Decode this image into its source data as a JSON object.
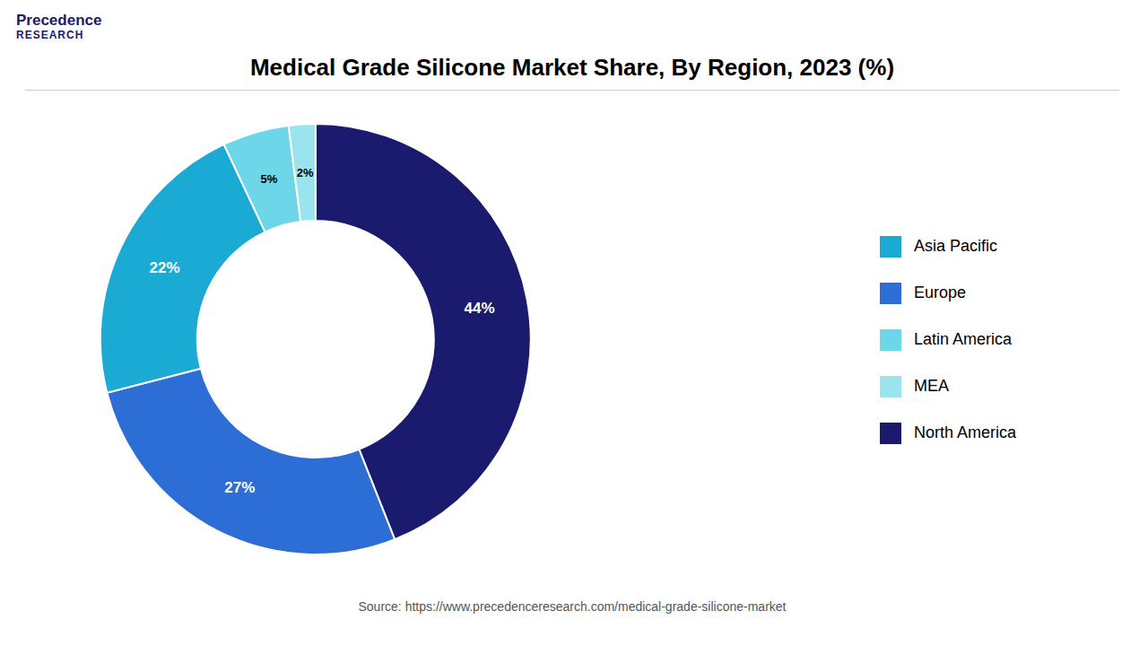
{
  "chart_data": {
    "type": "pie",
    "title": "Medical Grade Silicone Market Share, By Region, 2023 (%)",
    "categories": [
      "North America",
      "Europe",
      "Asia Pacific",
      "Latin America",
      "MEA"
    ],
    "values": [
      44,
      27,
      22,
      5,
      2
    ],
    "value_labels": [
      "44%",
      "27%",
      "22%",
      "5%",
      "2%"
    ],
    "colors": [
      "#1a1a6e",
      "#2d6ed6",
      "#1baad4",
      "#6dd6e8",
      "#9ae4ef"
    ],
    "data_labels": true,
    "legend": "right",
    "annotations": [
      "Precedence",
      "RESEARCH",
      "Source: https://www.precedenceresearch.com/medical-grade-silicone-market"
    ]
  }
}
